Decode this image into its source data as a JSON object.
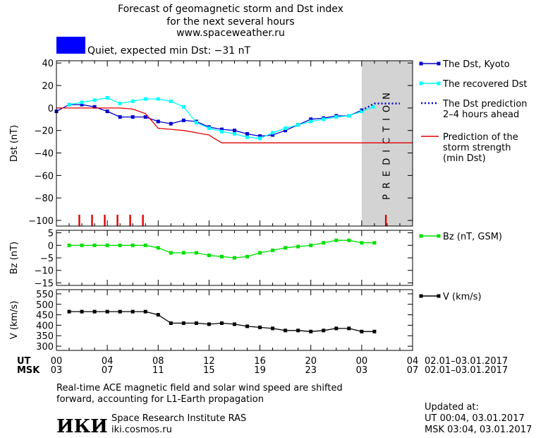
{
  "header": {
    "title_lines": [
      "Forecast of geomagnetic storm and Dst index",
      "for the next several hours",
      "www.spaceweather.ru"
    ],
    "status_text": "Quiet, expected min Dst: −31 nT",
    "status_color": "#0000ff"
  },
  "footer": {
    "note_lines": [
      "Real-time ACE magnetic field and solar wind speed are shifted",
      "forward, accounting for L1-Earth propagation"
    ],
    "institute": "Space Research Institute RAS",
    "site": "iki.cosmos.ru",
    "logo_text": "ИКИ",
    "updated_label": "Updated at:",
    "updated_ut": "UT  00:04, 03.01.2017",
    "updated_msk": "MSK 03:04, 03.01.2017"
  },
  "time_axis": {
    "ut_label": "UT",
    "msk_label": "MSK",
    "ut_ticks": [
      "00",
      "04",
      "08",
      "12",
      "16",
      "20",
      "00",
      "04"
    ],
    "msk_ticks": [
      "03",
      "07",
      "11",
      "15",
      "19",
      "23",
      "03",
      "07"
    ],
    "ut_range_text": "02.01–03.01.2017",
    "msk_range_text": "02.01–03.01.2017"
  },
  "chart_data": [
    {
      "type": "line",
      "ylabel": "Dst (nT)",
      "xlabel": "",
      "ylim": [
        -105,
        42
      ],
      "xlim": [
        0,
        28
      ],
      "yticks": [
        40,
        20,
        0,
        -20,
        -40,
        -60,
        -80,
        -100
      ],
      "prediction_band": {
        "x_start": 24.0,
        "x_end": 28.0,
        "label": "PREDICTION",
        "color": "#d3d3d3"
      },
      "series": [
        {
          "name": "The Dst, Kyoto",
          "color": "#0000d0",
          "style": "solid-square",
          "x": [
            0,
            1,
            2,
            3,
            4,
            5,
            6,
            7,
            8,
            9,
            10,
            11,
            12,
            13,
            14,
            15,
            16,
            17,
            18,
            19,
            20,
            21,
            22,
            23,
            24
          ],
          "y": [
            -3,
            3,
            3,
            1,
            -3,
            -8,
            -8,
            -8,
            -12,
            -14,
            -11,
            -12,
            -17,
            -19,
            -20,
            -23,
            -25,
            -24,
            -20,
            -15,
            -10,
            -9,
            -7,
            -7,
            -2
          ]
        },
        {
          "name": "The recovered Dst",
          "color": "#00ffff",
          "style": "solid-square",
          "x": [
            1,
            2,
            3,
            4,
            5,
            6,
            7,
            8,
            9,
            10,
            11,
            12,
            13,
            14,
            15,
            16,
            17,
            18,
            19,
            20,
            21,
            22,
            23,
            24,
            24.9
          ],
          "y": [
            3,
            5,
            7,
            9,
            4,
            6,
            8,
            8,
            6,
            1,
            -13,
            -18,
            -21,
            -23,
            -26,
            -27,
            -22,
            -18,
            -15,
            -12,
            -10,
            -8,
            -7,
            -3,
            1
          ]
        },
        {
          "name": "The Dst prediction",
          "name_line2": "2–4 hours ahead",
          "color": "#0000d0",
          "style": "dotted",
          "x": [
            24,
            24.5,
            25,
            26,
            27
          ],
          "y": [
            -2,
            1,
            4,
            4,
            4
          ]
        },
        {
          "name": "Prediction of the",
          "name_line2": "storm strength",
          "name_line3": "(min Dst)",
          "color": "#e00000",
          "style": "step",
          "x": [
            0,
            5,
            6,
            6.5,
            7,
            8,
            10,
            11,
            12,
            12.4,
            13,
            28
          ],
          "y": [
            0,
            0,
            -1,
            -3,
            -5,
            -18,
            -20,
            -22,
            -24,
            -27,
            -31,
            -31
          ]
        }
      ],
      "storm_marks_x": [
        1.8,
        2.8,
        3.8,
        4.8,
        5.8,
        6.8,
        25.9
      ]
    },
    {
      "type": "line",
      "ylabel": "Bz (nT)",
      "ylim": [
        -16,
        6
      ],
      "xlim": [
        0,
        28
      ],
      "yticks": [
        5,
        0,
        -5,
        -10,
        -15
      ],
      "series": [
        {
          "name": "Bz (nT, GSM)",
          "color": "#00e000",
          "x": [
            1,
            2,
            3,
            4,
            5,
            6,
            7,
            8,
            9,
            10,
            11,
            12,
            13,
            14,
            15,
            16,
            17,
            18,
            19,
            20,
            21,
            22,
            23,
            24,
            25
          ],
          "y": [
            0,
            0,
            0,
            0,
            0,
            0,
            0,
            -1,
            -3,
            -3,
            -3,
            -4,
            -4.5,
            -5,
            -4.5,
            -3,
            -2,
            -1,
            -0.5,
            0,
            1,
            2,
            2,
            1,
            1
          ]
        }
      ]
    },
    {
      "type": "line",
      "ylabel": "V (km/s)",
      "ylim": [
        280,
        570
      ],
      "xlim": [
        0,
        28
      ],
      "yticks": [
        550,
        500,
        450,
        400,
        350,
        300
      ],
      "series": [
        {
          "name": "V (km/s)",
          "color": "#000000",
          "x": [
            1,
            2,
            3,
            4,
            5,
            6,
            7,
            8,
            9,
            10,
            11,
            12,
            13,
            14,
            15,
            16,
            17,
            18,
            19,
            20,
            21,
            22,
            23,
            24,
            25
          ],
          "y": [
            465,
            465,
            465,
            465,
            465,
            465,
            465,
            450,
            410,
            410,
            410,
            405,
            410,
            405,
            395,
            390,
            385,
            375,
            375,
            370,
            375,
            385,
            385,
            370,
            370
          ]
        }
      ]
    }
  ]
}
